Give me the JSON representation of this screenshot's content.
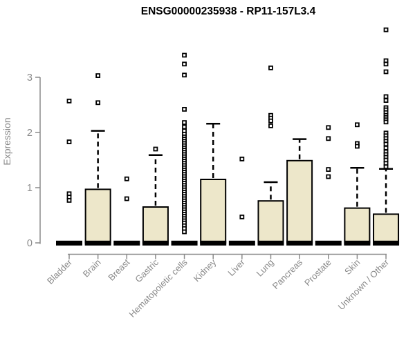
{
  "title": "ENSG00000235938 - RP11-157L3.4",
  "y_axis": {
    "label": "Expression"
  },
  "chart_data": {
    "type": "boxplot",
    "title": "ENSG00000235938 - RP11-157L3.4",
    "xlabel": "",
    "ylabel": "Expression",
    "yticks": [
      0,
      1,
      2,
      3
    ],
    "ylim": [
      0,
      3.95
    ],
    "grid": false,
    "legend": "none",
    "categories": [
      "Bladder",
      "Brain",
      "Breast",
      "Gastric",
      "Hematopoietic cells",
      "Kidney",
      "Liver",
      "Lung",
      "Pancreas",
      "Prostate",
      "Skin",
      "Unknown / Other"
    ],
    "series": [
      {
        "label": "Bladder",
        "min": 0,
        "q1": 0,
        "median": 0,
        "q3": 0,
        "whisker_high": 0,
        "outliers": [
          2.57,
          1.83,
          0.89,
          0.83,
          0.77
        ]
      },
      {
        "label": "Brain",
        "min": 0,
        "q1": 0,
        "median": 0,
        "q3": 0.97,
        "whisker_high": 2.03,
        "outliers": [
          3.03,
          2.54
        ]
      },
      {
        "label": "Breast",
        "min": 0,
        "q1": 0,
        "median": 0,
        "q3": 0,
        "whisker_high": 0,
        "outliers": [
          1.16,
          0.8
        ]
      },
      {
        "label": "Gastric",
        "min": 0,
        "q1": 0,
        "median": 0,
        "q3": 0.65,
        "whisker_high": 1.59,
        "outliers": [
          1.7
        ]
      },
      {
        "label": "Hematopoietic cells",
        "min": 0,
        "q1": 0,
        "median": 0,
        "q3": 0,
        "whisker_high": 0,
        "outliers": [
          3.4,
          3.24,
          3.04,
          2.42,
          2.18,
          2.1,
          2.03,
          1.97,
          1.92,
          1.88,
          1.84,
          1.8,
          1.76,
          1.72,
          1.68,
          1.64,
          1.6,
          1.56,
          1.52,
          1.48,
          1.44,
          1.4,
          1.36,
          1.32,
          1.28,
          1.24,
          1.2,
          1.16,
          1.12,
          1.08,
          1.04,
          1.0,
          0.96,
          0.92,
          0.88,
          0.84,
          0.8,
          0.76,
          0.72,
          0.68,
          0.64,
          0.6,
          0.56,
          0.52,
          0.48,
          0.44,
          0.4,
          0.36,
          0.31,
          0.26,
          0.2
        ]
      },
      {
        "label": "Kidney",
        "min": 0,
        "q1": 0,
        "median": 0,
        "q3": 1.15,
        "whisker_high": 2.16,
        "outliers": []
      },
      {
        "label": "Liver",
        "min": 0,
        "q1": 0,
        "median": 0,
        "q3": 0,
        "whisker_high": 0,
        "outliers": [
          1.52,
          0.47
        ]
      },
      {
        "label": "Lung",
        "min": 0,
        "q1": 0,
        "median": 0,
        "q3": 0.76,
        "whisker_high": 1.1,
        "outliers": [
          3.17,
          2.31,
          2.26,
          2.21,
          2.12
        ]
      },
      {
        "label": "Pancreas",
        "min": 0,
        "q1": 0,
        "median": 0,
        "q3": 1.49,
        "whisker_high": 1.88,
        "outliers": []
      },
      {
        "label": "Prostate",
        "min": 0,
        "q1": 0,
        "median": 0,
        "q3": 0,
        "whisker_high": 0,
        "outliers": [
          2.09,
          1.89,
          1.33,
          1.2
        ]
      },
      {
        "label": "Skin",
        "min": 0,
        "q1": 0,
        "median": 0,
        "q3": 0.63,
        "whisker_high": 1.36,
        "outliers": [
          2.14,
          1.8,
          1.75
        ]
      },
      {
        "label": "Unknown / Other",
        "min": 0,
        "q1": 0,
        "median": 0,
        "q3": 0.52,
        "whisker_high": 1.34,
        "outliers": [
          3.86,
          3.3,
          3.24,
          3.1,
          2.65,
          2.58,
          2.45,
          2.41,
          2.36,
          2.31,
          2.27,
          2.23,
          2.19,
          1.99,
          1.94,
          1.89,
          1.84,
          1.79,
          1.72,
          1.65,
          1.6,
          1.55,
          1.5,
          1.44,
          1.38
        ]
      }
    ],
    "colors": {
      "box_fill": "#EDE7CA",
      "box_stroke": "#000000",
      "median": "#000000",
      "whisker": "#000000",
      "outlier_stroke": "#000000",
      "outlier_fill": "#ffffff",
      "axis": "#8a8a8a",
      "tick_label": "#8a8a8a",
      "title": "#000000",
      "background": "#ffffff"
    }
  }
}
